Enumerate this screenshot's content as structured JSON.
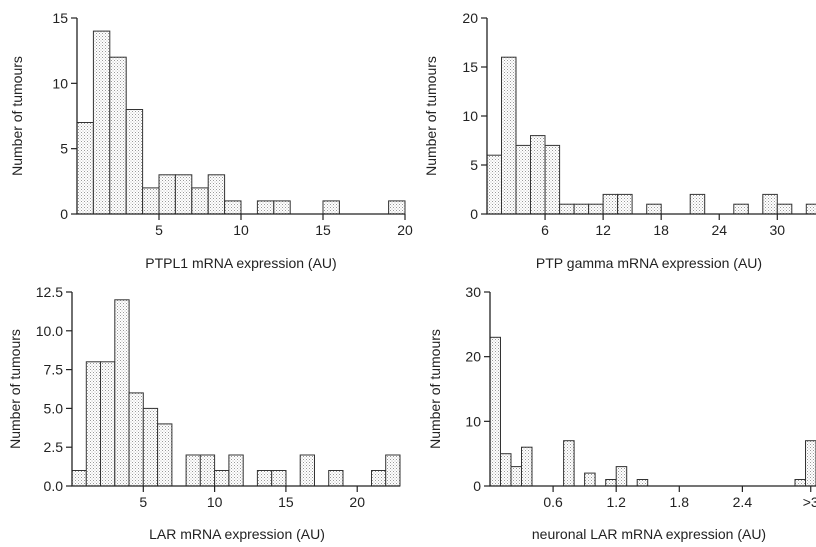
{
  "chart_data": [
    {
      "type": "bar",
      "xlabel": "PTPL1 mRNA expression (AU)",
      "ylabel": "Number of tumours",
      "xlim": [
        0,
        20
      ],
      "ylim": [
        0,
        15
      ],
      "x_ticks": [
        {
          "value": 5,
          "label": "5"
        },
        {
          "value": 10,
          "label": "10"
        },
        {
          "value": 15,
          "label": "15"
        },
        {
          "value": 20,
          "label": "20"
        }
      ],
      "y_ticks": [
        {
          "value": 0,
          "label": "0"
        },
        {
          "value": 5,
          "label": "5"
        },
        {
          "value": 10,
          "label": "10"
        },
        {
          "value": 15,
          "label": "15"
        }
      ],
      "bin_width": 1,
      "bins_start": [
        0,
        1,
        2,
        3,
        4,
        5,
        6,
        7,
        8,
        9,
        11,
        12,
        15,
        19
      ],
      "values": [
        7,
        14,
        12,
        8,
        2,
        3,
        3,
        2,
        3,
        1,
        1,
        1,
        1,
        1
      ]
    },
    {
      "type": "bar",
      "xlabel": "PTP gamma mRNA expression (AU)",
      "ylabel": "Number of tumours",
      "xlim": [
        0,
        34
      ],
      "ylim": [
        0,
        20
      ],
      "x_ticks": [
        {
          "value": 6,
          "label": "6"
        },
        {
          "value": 12,
          "label": "12"
        },
        {
          "value": 18,
          "label": "18"
        },
        {
          "value": 24,
          "label": "24"
        },
        {
          "value": 30,
          "label": "30"
        }
      ],
      "y_ticks": [
        {
          "value": 0,
          "label": "0"
        },
        {
          "value": 5,
          "label": "5"
        },
        {
          "value": 10,
          "label": "10"
        },
        {
          "value": 15,
          "label": "15"
        },
        {
          "value": 20,
          "label": "20"
        }
      ],
      "bin_width": 1.5,
      "bins_start": [
        0,
        1.5,
        3,
        4.5,
        6,
        7.5,
        9,
        10.5,
        12,
        13.5,
        16.5,
        21,
        25.5,
        28.5,
        30,
        33
      ],
      "values": [
        6,
        16,
        7,
        8,
        7,
        1,
        1,
        1,
        2,
        2,
        1,
        2,
        1,
        2,
        1,
        1
      ]
    },
    {
      "type": "bar",
      "xlabel": "LAR mRNA expression (AU)",
      "ylabel": "Number of tumours",
      "xlim": [
        0,
        23
      ],
      "ylim": [
        0,
        12.5
      ],
      "x_ticks": [
        {
          "value": 5,
          "label": "5"
        },
        {
          "value": 10,
          "label": "10"
        },
        {
          "value": 15,
          "label": "15"
        },
        {
          "value": 20,
          "label": "20"
        }
      ],
      "y_ticks": [
        {
          "value": 0,
          "label": "0.0"
        },
        {
          "value": 2.5,
          "label": "2.5"
        },
        {
          "value": 5,
          "label": "5.0"
        },
        {
          "value": 7.5,
          "label": "7.5"
        },
        {
          "value": 10,
          "label": "10.0"
        },
        {
          "value": 12.5,
          "label": "12.5"
        }
      ],
      "bin_width": 1,
      "bins_start": [
        0,
        1,
        2,
        3,
        4,
        5,
        6,
        8,
        9,
        10,
        11,
        13,
        14,
        16,
        18,
        21,
        22
      ],
      "values": [
        1,
        8,
        8,
        12,
        6,
        5,
        4,
        2,
        2,
        1,
        2,
        1,
        1,
        2,
        1,
        1,
        2
      ]
    },
    {
      "type": "bar",
      "xlabel": "neuronal LAR mRNA expression (AU)",
      "ylabel": "Number of tumours",
      "xlim": [
        0,
        3.1
      ],
      "ylim": [
        0,
        30
      ],
      "x_ticks": [
        {
          "value": 0.6,
          "label": "0.6"
        },
        {
          "value": 1.2,
          "label": "1.2"
        },
        {
          "value": 1.8,
          "label": "1.8"
        },
        {
          "value": 2.4,
          "label": "2.4"
        },
        {
          "value": 3.05,
          "label": ">3"
        }
      ],
      "y_ticks": [
        {
          "value": 0,
          "label": "0"
        },
        {
          "value": 10,
          "label": "10"
        },
        {
          "value": 20,
          "label": "20"
        },
        {
          "value": 30,
          "label": "30"
        }
      ],
      "bin_width": 0.1,
      "bins_start": [
        0,
        0.1,
        0.2,
        0.3,
        0.5,
        0.7,
        0.9,
        1.1,
        1.2,
        1.4,
        2.9,
        3.0
      ],
      "values": [
        23,
        5,
        3,
        6,
        0,
        7,
        2,
        1,
        3,
        1,
        1,
        7
      ]
    }
  ]
}
